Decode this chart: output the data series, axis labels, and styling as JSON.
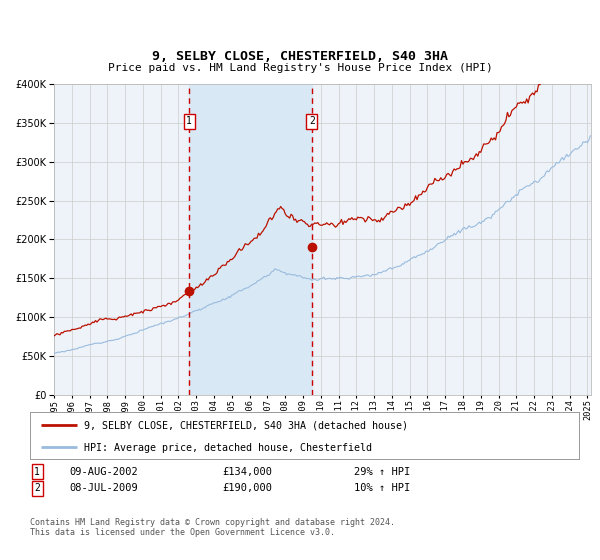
{
  "title": "9, SELBY CLOSE, CHESTERFIELD, S40 3HA",
  "subtitle": "Price paid vs. HM Land Registry's House Price Index (HPI)",
  "legend_line1": "9, SELBY CLOSE, CHESTERFIELD, S40 3HA (detached house)",
  "legend_line2": "HPI: Average price, detached house, Chesterfield",
  "table_row1_date": "09-AUG-2002",
  "table_row1_price": "£134,000",
  "table_row1_hpi": "29% ↑ HPI",
  "table_row2_date": "08-JUL-2009",
  "table_row2_price": "£190,000",
  "table_row2_hpi": "10% ↑ HPI",
  "footer": "Contains HM Land Registry data © Crown copyright and database right 2024.\nThis data is licensed under the Open Government Licence v3.0.",
  "ylim": [
    0,
    400000
  ],
  "yticks": [
    0,
    50000,
    100000,
    150000,
    200000,
    250000,
    300000,
    350000,
    400000
  ],
  "background_color": "#ffffff",
  "plot_background": "#eef3fa",
  "grid_color": "#cccccc",
  "hpi_color": "#99bbdd",
  "price_color": "#bb1100",
  "sale1_x": 2002.608,
  "sale1_y": 134000,
  "sale2_x": 2009.5,
  "sale2_y": 190000,
  "vline_color": "#cc0000",
  "shade_color": "#d8e8f5",
  "shade_start": 2002.608,
  "shade_end": 2009.5,
  "xlim_start": 1995.0,
  "xlim_end": 2025.2
}
